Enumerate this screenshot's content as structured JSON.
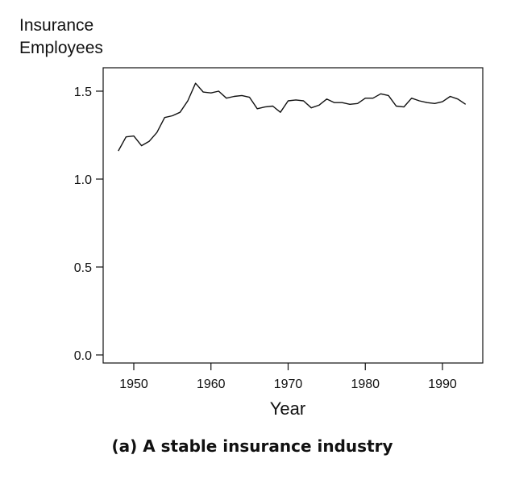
{
  "chart_data": {
    "type": "line",
    "ylabel_lines": [
      "Insurance",
      "Employees"
    ],
    "xlabel": "Year",
    "caption": "(a) A stable insurance industry",
    "xlim": [
      1945.5,
      1995
    ],
    "ylim": [
      0,
      1.6
    ],
    "xticks": [
      1950,
      1960,
      1970,
      1980,
      1990
    ],
    "yticks": [
      0.0,
      0.5,
      1.0,
      1.5
    ],
    "ytick_labels": [
      "0.0",
      "0.5",
      "1.0",
      "1.5"
    ],
    "grid": false,
    "legend": "none",
    "line_color": "#111111",
    "series": [
      {
        "x": [
          1948,
          1949,
          1950,
          1951,
          1952,
          1953,
          1954,
          1955,
          1956,
          1957,
          1958,
          1959,
          1960,
          1961,
          1962,
          1963,
          1964,
          1965,
          1966,
          1967,
          1968,
          1969,
          1970,
          1971,
          1972,
          1973,
          1974,
          1975,
          1976,
          1977,
          1978,
          1979,
          1980,
          1981,
          1982,
          1983,
          1984,
          1985,
          1986,
          1987,
          1988,
          1989,
          1990,
          1991,
          1992,
          1993
        ],
        "values": [
          1.16,
          1.24,
          1.245,
          1.19,
          1.215,
          1.265,
          1.35,
          1.36,
          1.38,
          1.445,
          1.545,
          1.495,
          1.49,
          1.5,
          1.46,
          1.47,
          1.475,
          1.465,
          1.4,
          1.41,
          1.415,
          1.38,
          1.445,
          1.45,
          1.445,
          1.405,
          1.42,
          1.455,
          1.435,
          1.435,
          1.425,
          1.43,
          1.46,
          1.46,
          1.485,
          1.475,
          1.415,
          1.41,
          1.46,
          1.445,
          1.435,
          1.43,
          1.44,
          1.47,
          1.455,
          1.425
        ]
      }
    ]
  }
}
